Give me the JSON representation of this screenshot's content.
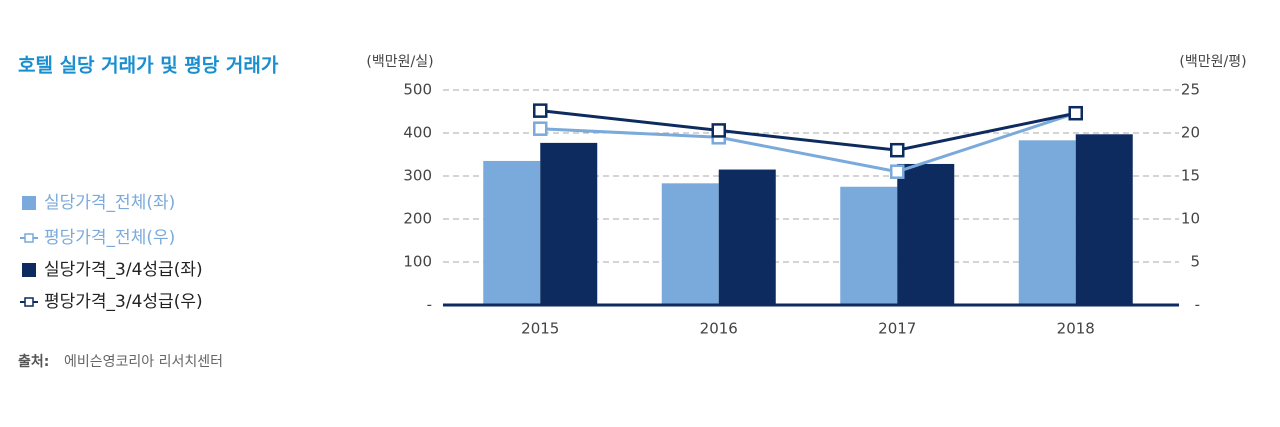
{
  "chart_data": {
    "type": "bar",
    "title": "호텔 실당 거래가 및 평당 거래가",
    "y_label": "(백만원/실)",
    "y2_label": "(백만원/평)",
    "categories": [
      "2015",
      "2016",
      "2017",
      "2018"
    ],
    "series": [
      {
        "name": "실당가격_전체(좌)",
        "type": "bar",
        "color": "#7aaadc",
        "values": [
          335,
          283,
          275,
          383
        ]
      },
      {
        "name": "평당가격_전체(우)",
        "type": "line",
        "axis": "y2",
        "color": "#7aaadc",
        "values": [
          20.5,
          19.5,
          15.5,
          22.3
        ]
      },
      {
        "name": "실당가격_3/4성급(좌)",
        "type": "bar",
        "color": "#0d2b5e",
        "values": [
          377,
          315,
          328,
          397
        ]
      },
      {
        "name": "평당가격_3/4성급(우)",
        "type": "line",
        "axis": "y2",
        "color": "#0d2b5e",
        "values": [
          22.6,
          20.3,
          18,
          22.3
        ]
      }
    ],
    "ylim": [
      0,
      500
    ],
    "yticks": [
      {
        "value": 0,
        "label": "-"
      },
      100,
      200,
      300,
      400,
      500
    ],
    "y2lim": [
      0,
      25
    ],
    "y2ticks": [
      {
        "value": 0,
        "label": "-"
      },
      5,
      10,
      15,
      20,
      25
    ],
    "grid": true,
    "source_label": "출처:",
    "source": "에비슨영코리아 리서치센터"
  }
}
